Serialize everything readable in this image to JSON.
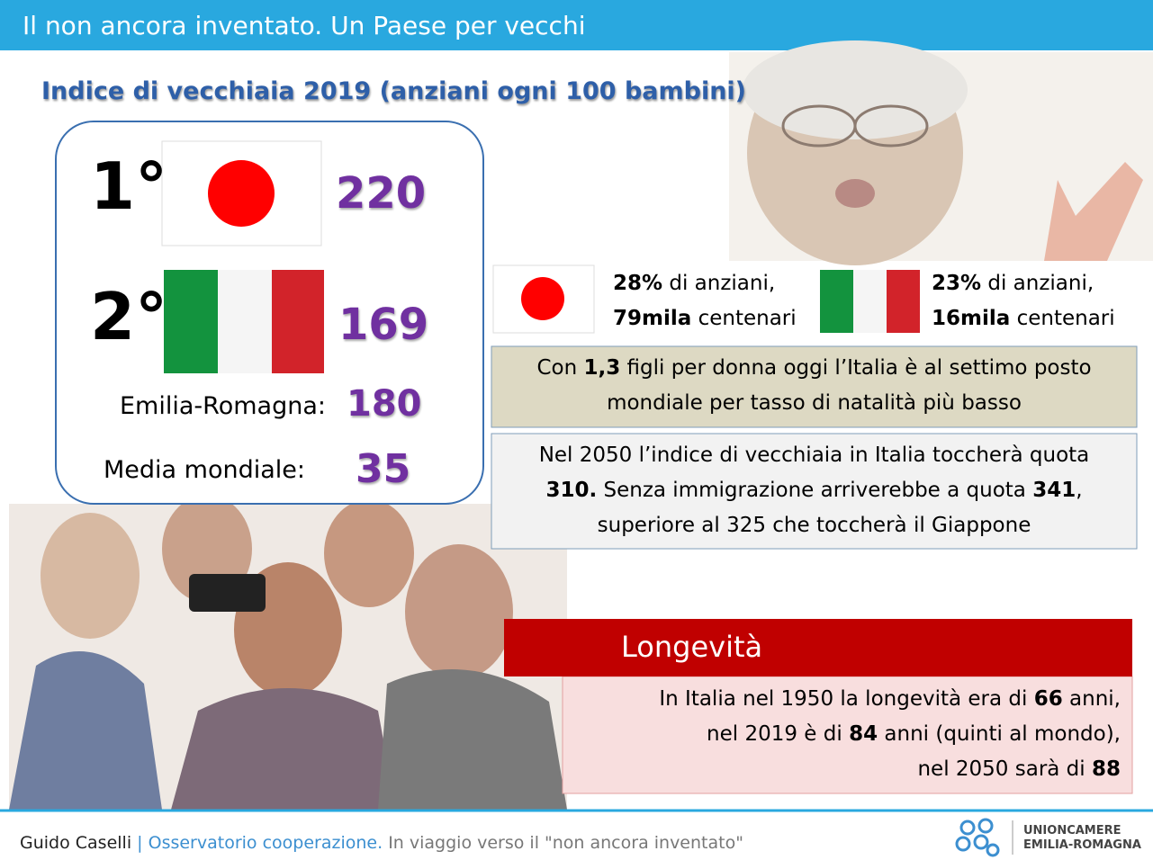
{
  "header": {
    "title": "Il non ancora inventato. Un Paese per vecchi"
  },
  "ranking": {
    "title": "Indice di vecchiaia 2019 (anziani ogni 100 bambini)",
    "items": [
      {
        "rank": "1°",
        "value": 220
      },
      {
        "rank": "2°",
        "value": 169
      }
    ],
    "regional": {
      "label": "Emilia-Romagna:",
      "value": 180
    },
    "world": {
      "label": "Media mondiale:",
      "value": 35
    }
  },
  "stats": [
    {
      "lines": [
        [
          {
            "t": "28%",
            "b": true
          },
          {
            "t": " di anziani,"
          }
        ],
        [
          {
            "t": "79mila",
            "b": true
          },
          {
            "t": " centenari"
          }
        ]
      ]
    },
    {
      "lines": [
        [
          {
            "t": "23%",
            "b": true
          },
          {
            "t": " di anziani,"
          }
        ],
        [
          {
            "t": "16mila",
            "b": true
          },
          {
            "t": " centenari"
          }
        ]
      ]
    }
  ],
  "natality": {
    "lines": [
      [
        {
          "t": "Con "
        },
        {
          "t": "1,3",
          "b": true
        },
        {
          "t": " figli per donna oggi l’Italia è al settimo posto"
        }
      ],
      [
        {
          "t": "mondiale per tasso di natalità più basso"
        }
      ]
    ]
  },
  "forecast": {
    "lines": [
      [
        {
          "t": "Nel 2050 l’indice di vecchiaia in Italia toccherà quota"
        }
      ],
      [
        {
          "t": "310.",
          "b": true
        },
        {
          "t": " Senza immigrazione arriverebbe a quota "
        },
        {
          "t": "341",
          "b": true
        },
        {
          "t": ","
        }
      ],
      [
        {
          "t": "superiore al 325 che toccherà il Giappone"
        }
      ]
    ]
  },
  "longevity": {
    "title": "Longevità",
    "lines": [
      [
        {
          "t": "In Italia nel 1950 la longevità era di "
        },
        {
          "t": "66",
          "b": true
        },
        {
          "t": " anni,"
        }
      ],
      [
        {
          "t": "nel 2019 è di "
        },
        {
          "t": "84",
          "b": true
        },
        {
          "t": " anni (quinti al mondo),"
        }
      ],
      [
        {
          "t": "nel 2050 sarà di "
        },
        {
          "t": "88",
          "b": true
        }
      ]
    ]
  },
  "footer": {
    "author": "Guido Caselli",
    "separator": "|",
    "org": "Osservatorio cooperazione.",
    "tagline": "In viaggio verso il \"non ancora inventato\"",
    "logo": [
      "UNIONCAMERE",
      "EMILIA-ROMAGNA"
    ]
  }
}
